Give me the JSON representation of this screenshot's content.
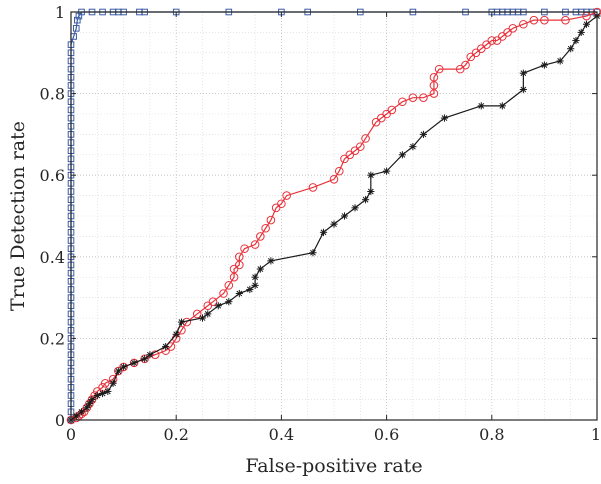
{
  "chart_data": {
    "type": "line",
    "title": "",
    "xlabel": "False-positive rate",
    "ylabel": "True Detection rate",
    "xlim": [
      0,
      1
    ],
    "ylim": [
      0,
      1
    ],
    "grid": true,
    "grid_minor": true,
    "legend": "none",
    "xticks": [
      0,
      0.2,
      0.4,
      0.6,
      0.8,
      1
    ],
    "yticks": [
      0,
      0.2,
      0.4,
      0.6,
      0.8,
      1
    ],
    "xtick_labels": [
      "0",
      "0.2",
      "0.4",
      "0.6",
      "0.8",
      "1"
    ],
    "ytick_labels": [
      "0",
      "0.2",
      "0.4",
      "0.6",
      "0.8",
      "1"
    ],
    "series": [
      {
        "color": "#3b5ba5",
        "marker": "square",
        "points": [
          [
            0,
            0
          ],
          [
            0,
            0.02
          ],
          [
            0,
            0.04
          ],
          [
            0,
            0.06
          ],
          [
            0,
            0.08
          ],
          [
            0,
            0.1
          ],
          [
            0,
            0.12
          ],
          [
            0,
            0.14
          ],
          [
            0,
            0.16
          ],
          [
            0,
            0.18
          ],
          [
            0,
            0.2
          ],
          [
            0,
            0.22
          ],
          [
            0,
            0.24
          ],
          [
            0,
            0.26
          ],
          [
            0,
            0.28
          ],
          [
            0,
            0.3
          ],
          [
            0,
            0.32
          ],
          [
            0,
            0.34
          ],
          [
            0,
            0.36
          ],
          [
            0,
            0.38
          ],
          [
            0,
            0.4
          ],
          [
            0,
            0.42
          ],
          [
            0,
            0.44
          ],
          [
            0,
            0.46
          ],
          [
            0,
            0.48
          ],
          [
            0,
            0.5
          ],
          [
            0,
            0.52
          ],
          [
            0,
            0.54
          ],
          [
            0,
            0.56
          ],
          [
            0,
            0.58
          ],
          [
            0,
            0.6
          ],
          [
            0,
            0.62
          ],
          [
            0,
            0.64
          ],
          [
            0,
            0.66
          ],
          [
            0,
            0.68
          ],
          [
            0,
            0.7
          ],
          [
            0,
            0.72
          ],
          [
            0,
            0.74
          ],
          [
            0,
            0.76
          ],
          [
            0,
            0.78
          ],
          [
            0,
            0.8
          ],
          [
            0,
            0.82
          ],
          [
            0,
            0.84
          ],
          [
            0,
            0.86
          ],
          [
            0,
            0.88
          ],
          [
            0,
            0.9
          ],
          [
            0,
            0.92
          ],
          [
            0.005,
            0.94
          ],
          [
            0.01,
            0.96
          ],
          [
            0.012,
            0.98
          ],
          [
            0.015,
            0.99
          ],
          [
            0.02,
            1.0
          ],
          [
            0.04,
            1.0
          ],
          [
            0.06,
            1.0
          ],
          [
            0.08,
            1.0
          ],
          [
            0.09,
            1.0
          ],
          [
            0.1,
            1.0
          ],
          [
            0.13,
            1.0
          ],
          [
            0.14,
            1.0
          ],
          [
            0.2,
            1.0
          ],
          [
            0.3,
            1.0
          ],
          [
            0.4,
            1.0
          ],
          [
            0.45,
            1.0
          ],
          [
            0.55,
            1.0
          ],
          [
            0.65,
            1.0
          ],
          [
            0.75,
            1.0
          ],
          [
            0.8,
            1.0
          ],
          [
            0.81,
            1.0
          ],
          [
            0.82,
            1.0
          ],
          [
            0.83,
            1.0
          ],
          [
            0.84,
            1.0
          ],
          [
            0.85,
            1.0
          ],
          [
            0.86,
            1.0
          ],
          [
            0.9,
            1.0
          ],
          [
            0.94,
            1.0
          ],
          [
            0.96,
            1.0
          ],
          [
            0.97,
            1.0
          ],
          [
            0.98,
            1.0
          ],
          [
            0.99,
            1.0
          ],
          [
            1.0,
            1.0
          ]
        ]
      },
      {
        "color": "#e8313a",
        "marker": "circle",
        "points": [
          [
            0,
            0
          ],
          [
            0.01,
            0.005
          ],
          [
            0.015,
            0.01
          ],
          [
            0.02,
            0.015
          ],
          [
            0.025,
            0.02
          ],
          [
            0.03,
            0.03
          ],
          [
            0.035,
            0.04
          ],
          [
            0.04,
            0.05
          ],
          [
            0.045,
            0.06
          ],
          [
            0.05,
            0.07
          ],
          [
            0.06,
            0.08
          ],
          [
            0.065,
            0.09
          ],
          [
            0.08,
            0.1
          ],
          [
            0.09,
            0.12
          ],
          [
            0.1,
            0.13
          ],
          [
            0.12,
            0.14
          ],
          [
            0.14,
            0.15
          ],
          [
            0.16,
            0.16
          ],
          [
            0.18,
            0.17
          ],
          [
            0.19,
            0.18
          ],
          [
            0.2,
            0.2
          ],
          [
            0.21,
            0.22
          ],
          [
            0.22,
            0.24
          ],
          [
            0.24,
            0.26
          ],
          [
            0.26,
            0.28
          ],
          [
            0.27,
            0.29
          ],
          [
            0.29,
            0.31
          ],
          [
            0.3,
            0.33
          ],
          [
            0.31,
            0.35
          ],
          [
            0.31,
            0.37
          ],
          [
            0.32,
            0.38
          ],
          [
            0.32,
            0.4
          ],
          [
            0.33,
            0.42
          ],
          [
            0.35,
            0.43
          ],
          [
            0.36,
            0.45
          ],
          [
            0.37,
            0.47
          ],
          [
            0.38,
            0.49
          ],
          [
            0.39,
            0.52
          ],
          [
            0.4,
            0.53
          ],
          [
            0.41,
            0.55
          ],
          [
            0.46,
            0.57
          ],
          [
            0.5,
            0.59
          ],
          [
            0.51,
            0.61
          ],
          [
            0.52,
            0.64
          ],
          [
            0.53,
            0.65
          ],
          [
            0.54,
            0.66
          ],
          [
            0.55,
            0.67
          ],
          [
            0.56,
            0.69
          ],
          [
            0.58,
            0.73
          ],
          [
            0.59,
            0.74
          ],
          [
            0.6,
            0.75
          ],
          [
            0.61,
            0.76
          ],
          [
            0.63,
            0.78
          ],
          [
            0.65,
            0.79
          ],
          [
            0.67,
            0.79
          ],
          [
            0.69,
            0.8
          ],
          [
            0.69,
            0.82
          ],
          [
            0.69,
            0.84
          ],
          [
            0.7,
            0.86
          ],
          [
            0.74,
            0.86
          ],
          [
            0.75,
            0.87
          ],
          [
            0.76,
            0.89
          ],
          [
            0.77,
            0.9
          ],
          [
            0.78,
            0.91
          ],
          [
            0.79,
            0.92
          ],
          [
            0.8,
            0.93
          ],
          [
            0.81,
            0.93
          ],
          [
            0.82,
            0.94
          ],
          [
            0.83,
            0.95
          ],
          [
            0.84,
            0.96
          ],
          [
            0.86,
            0.97
          ],
          [
            0.88,
            0.98
          ],
          [
            0.9,
            0.98
          ],
          [
            0.94,
            0.98
          ],
          [
            0.98,
            0.99
          ],
          [
            1.0,
            1.0
          ]
        ]
      },
      {
        "color": "#1a1a1a",
        "marker": "asterisk",
        "points": [
          [
            0,
            0
          ],
          [
            0.01,
            0.01
          ],
          [
            0.02,
            0.02
          ],
          [
            0.03,
            0.03
          ],
          [
            0.035,
            0.04
          ],
          [
            0.04,
            0.05
          ],
          [
            0.05,
            0.06
          ],
          [
            0.06,
            0.065
          ],
          [
            0.07,
            0.07
          ],
          [
            0.08,
            0.09
          ],
          [
            0.09,
            0.12
          ],
          [
            0.1,
            0.13
          ],
          [
            0.12,
            0.14
          ],
          [
            0.14,
            0.15
          ],
          [
            0.15,
            0.16
          ],
          [
            0.18,
            0.18
          ],
          [
            0.2,
            0.21
          ],
          [
            0.21,
            0.24
          ],
          [
            0.25,
            0.25
          ],
          [
            0.26,
            0.26
          ],
          [
            0.28,
            0.28
          ],
          [
            0.3,
            0.29
          ],
          [
            0.32,
            0.31
          ],
          [
            0.34,
            0.32
          ],
          [
            0.35,
            0.33
          ],
          [
            0.35,
            0.35
          ],
          [
            0.36,
            0.37
          ],
          [
            0.38,
            0.39
          ],
          [
            0.46,
            0.41
          ],
          [
            0.48,
            0.46
          ],
          [
            0.5,
            0.48
          ],
          [
            0.52,
            0.5
          ],
          [
            0.54,
            0.52
          ],
          [
            0.56,
            0.54
          ],
          [
            0.57,
            0.56
          ],
          [
            0.57,
            0.6
          ],
          [
            0.6,
            0.61
          ],
          [
            0.63,
            0.65
          ],
          [
            0.65,
            0.67
          ],
          [
            0.67,
            0.7
          ],
          [
            0.71,
            0.74
          ],
          [
            0.78,
            0.77
          ],
          [
            0.82,
            0.77
          ],
          [
            0.86,
            0.81
          ],
          [
            0.86,
            0.85
          ],
          [
            0.9,
            0.87
          ],
          [
            0.93,
            0.88
          ],
          [
            0.95,
            0.91
          ],
          [
            0.96,
            0.93
          ],
          [
            0.97,
            0.95
          ],
          [
            0.98,
            0.97
          ],
          [
            1.0,
            0.99
          ]
        ]
      }
    ]
  }
}
